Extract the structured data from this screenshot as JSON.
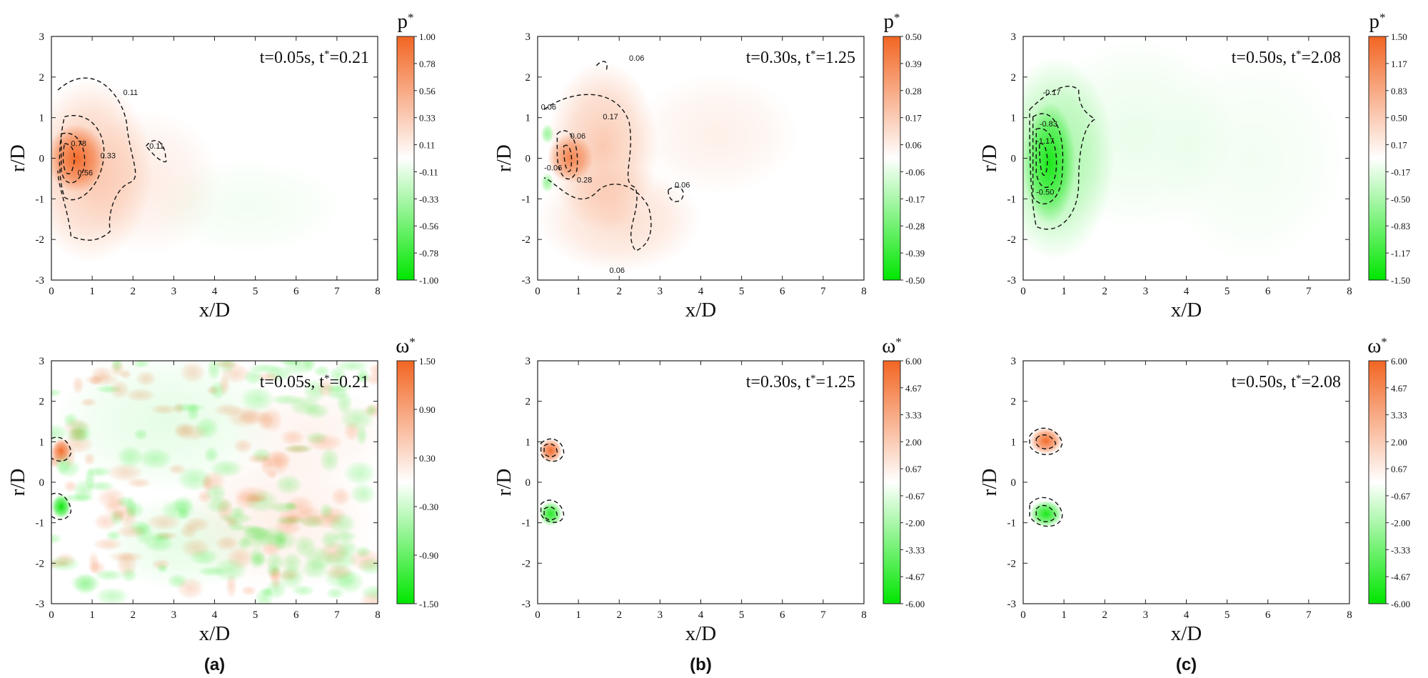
{
  "chart_data": [
    {
      "type": "heatmap",
      "id": "a-top",
      "variable": "p",
      "time_label": "t=0.05s, t*=0.21",
      "colorbar_ticks": [
        "1.00",
        "0.78",
        "0.56",
        "0.33",
        "0.11",
        "-0.11",
        "-0.33",
        "-0.56",
        "-0.78",
        "-1.00"
      ],
      "contour_labels": [
        "0.11",
        "0.78",
        "0.56",
        "0.33",
        "0.11"
      ],
      "xlabel": "x/D",
      "ylabel": "r/D",
      "xticks": [
        "0",
        "1",
        "2",
        "3",
        "4",
        "5",
        "6",
        "7",
        "8"
      ],
      "yticks": [
        "3",
        "2",
        "1",
        "0",
        "-1",
        "-2",
        "-3"
      ],
      "xlim": [
        0,
        8
      ],
      "ylim": [
        -3,
        3
      ]
    },
    {
      "type": "heatmap",
      "id": "b-top",
      "variable": "p",
      "time_label": "t=0.30s, t*=1.25",
      "colorbar_ticks": [
        "0.50",
        "0.39",
        "0.28",
        "0.17",
        "0.06",
        "-0.06",
        "-0.17",
        "-0.28",
        "-0.39",
        "-0.50"
      ],
      "contour_labels": [
        "0.06",
        "0.06",
        "0.06",
        "0.28",
        "-0.06",
        "0.17",
        "0.06",
        "0.06"
      ],
      "xlabel": "x/D",
      "ylabel": "r/D",
      "xticks": [
        "0",
        "1",
        "2",
        "3",
        "4",
        "5",
        "6",
        "7",
        "8"
      ],
      "yticks": [
        "3",
        "2",
        "1",
        "0",
        "-1",
        "-2",
        "-3"
      ],
      "xlim": [
        0,
        8
      ],
      "ylim": [
        -3,
        3
      ]
    },
    {
      "type": "heatmap",
      "id": "c-top",
      "variable": "p",
      "time_label": "t=0.50s, t*=2.08",
      "colorbar_ticks": [
        "1.50",
        "1.17",
        "0.83",
        "0.50",
        "0.17",
        "-0.17",
        "-0.50",
        "-0.83",
        "-1.17",
        "-1.50"
      ],
      "contour_labels": [
        "-0.17",
        "-0.83",
        "-1.17",
        "-0.50"
      ],
      "xlabel": "x/D",
      "ylabel": "r/D",
      "xticks": [
        "0",
        "1",
        "2",
        "3",
        "4",
        "5",
        "6",
        "7",
        "8"
      ],
      "yticks": [
        "3",
        "2",
        "1",
        "0",
        "-1",
        "-2",
        "-3"
      ],
      "xlim": [
        0,
        8
      ],
      "ylim": [
        -3,
        3
      ]
    },
    {
      "type": "heatmap",
      "id": "a-bottom",
      "variable": "ω",
      "time_label": "t=0.05s, t*=0.21",
      "colorbar_ticks": [
        "1.50",
        "0.90",
        "0.30",
        "-0.30",
        "-0.90",
        "-1.50"
      ],
      "contour_labels": [],
      "xlabel": "x/D",
      "ylabel": "r/D",
      "xticks": [
        "0",
        "1",
        "2",
        "3",
        "4",
        "5",
        "6",
        "7",
        "8"
      ],
      "yticks": [
        "3",
        "2",
        "1",
        "0",
        "-1",
        "-2",
        "-3"
      ],
      "xlim": [
        0,
        8
      ],
      "ylim": [
        -3,
        3
      ]
    },
    {
      "type": "heatmap",
      "id": "b-bottom",
      "variable": "ω",
      "time_label": "t=0.30s, t*=1.25",
      "colorbar_ticks": [
        "6.00",
        "4.67",
        "3.33",
        "2.00",
        "0.67",
        "-0.67",
        "-2.00",
        "-3.33",
        "-4.67",
        "-6.00"
      ],
      "contour_labels": [],
      "xlabel": "x/D",
      "ylabel": "r/D",
      "xticks": [
        "0",
        "1",
        "2",
        "3",
        "4",
        "5",
        "6",
        "7",
        "8"
      ],
      "yticks": [
        "3",
        "2",
        "1",
        "0",
        "-1",
        "-2",
        "-3"
      ],
      "xlim": [
        0,
        8
      ],
      "ylim": [
        -3,
        3
      ]
    },
    {
      "type": "heatmap",
      "id": "c-bottom",
      "variable": "ω",
      "time_label": "t=0.50s, t*=2.08",
      "colorbar_ticks": [
        "6.00",
        "4.67",
        "3.33",
        "2.00",
        "0.67",
        "-0.67",
        "-2.00",
        "-3.33",
        "-4.67",
        "-6.00"
      ],
      "contour_labels": [],
      "xlabel": "x/D",
      "ylabel": "r/D",
      "xticks": [
        "0",
        "1",
        "2",
        "3",
        "4",
        "5",
        "6",
        "7",
        "8"
      ],
      "yticks": [
        "3",
        "2",
        "1",
        "0",
        "-1",
        "-2",
        "-3"
      ],
      "xlim": [
        0,
        8
      ],
      "ylim": [
        -3,
        3
      ]
    }
  ],
  "panel_letters": [
    "(a)",
    "(b)",
    "(c)"
  ],
  "colors": {
    "positive": "#f26522",
    "negative": "#00e600",
    "neutral": "#ffffff"
  }
}
